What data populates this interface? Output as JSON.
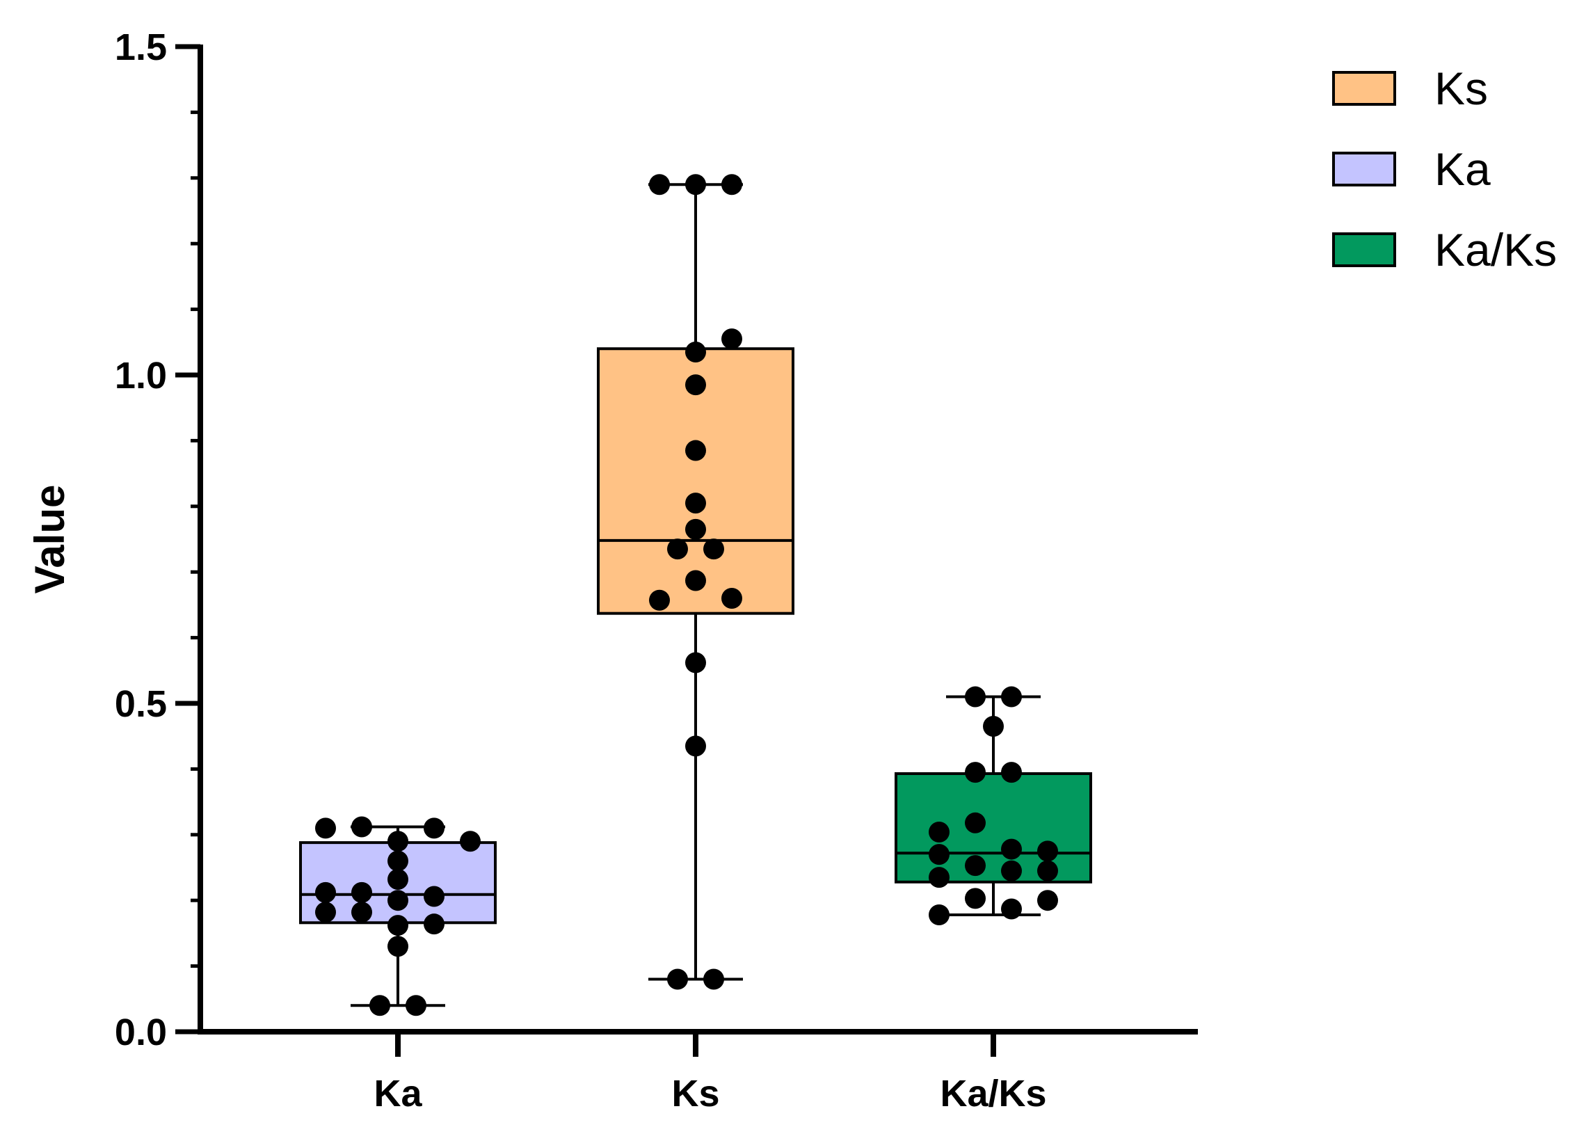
{
  "chart_data": {
    "type": "box",
    "title": "",
    "xlabel": "",
    "ylabel": "Value",
    "ylim": [
      0,
      1.5
    ],
    "yticks": [
      {
        "value": 0.0,
        "label": "0.0"
      },
      {
        "value": 0.5,
        "label": "0.5"
      },
      {
        "value": 1.0,
        "label": "1.0"
      },
      {
        "value": 1.5,
        "label": "1.5"
      }
    ],
    "y_minor_tick_step": 0.1,
    "grid": false,
    "legend_position": "top-right",
    "legend": [
      {
        "label": "Ks",
        "color": "#FFC285"
      },
      {
        "label": "Ka",
        "color": "#C4C4FF"
      },
      {
        "label": "Ka/Ks",
        "color": "#02995E"
      }
    ],
    "categories": [
      "Ka",
      "Ks",
      "Ka/Ks"
    ],
    "boxes": [
      {
        "category": "Ka",
        "color": "#C4C4FF",
        "min": 0.04,
        "q1": 0.166,
        "median": 0.209,
        "q3": 0.288,
        "max": 0.312,
        "points": [
          {
            "offset": -2,
            "y": 0.31
          },
          {
            "offset": -1,
            "y": 0.312
          },
          {
            "offset": 1,
            "y": 0.31
          },
          {
            "offset": 2,
            "y": 0.29
          },
          {
            "offset": 0,
            "y": 0.29
          },
          {
            "offset": 0,
            "y": 0.26
          },
          {
            "offset": 0,
            "y": 0.232
          },
          {
            "offset": -2,
            "y": 0.212
          },
          {
            "offset": -1,
            "y": 0.212
          },
          {
            "offset": 1,
            "y": 0.206
          },
          {
            "offset": 0,
            "y": 0.2
          },
          {
            "offset": -2,
            "y": 0.182
          },
          {
            "offset": -1,
            "y": 0.182
          },
          {
            "offset": 0,
            "y": 0.162
          },
          {
            "offset": 1,
            "y": 0.164
          },
          {
            "offset": 0,
            "y": 0.13
          },
          {
            "offset": -0.5,
            "y": 0.04
          },
          {
            "offset": 0.5,
            "y": 0.04
          }
        ]
      },
      {
        "category": "Ks",
        "color": "#FFC285",
        "min": 0.08,
        "q1": 0.637,
        "median": 0.748,
        "q3": 1.04,
        "max": 1.29,
        "points": [
          {
            "offset": -1,
            "y": 1.29
          },
          {
            "offset": 0,
            "y": 1.29
          },
          {
            "offset": 1,
            "y": 1.29
          },
          {
            "offset": 1,
            "y": 1.055
          },
          {
            "offset": 0,
            "y": 1.035
          },
          {
            "offset": 0,
            "y": 0.985
          },
          {
            "offset": 0,
            "y": 0.885
          },
          {
            "offset": 0,
            "y": 0.805
          },
          {
            "offset": 0,
            "y": 0.765
          },
          {
            "offset": -0.5,
            "y": 0.735
          },
          {
            "offset": 0.5,
            "y": 0.735
          },
          {
            "offset": 0,
            "y": 0.687
          },
          {
            "offset": -1,
            "y": 0.657
          },
          {
            "offset": 1,
            "y": 0.66
          },
          {
            "offset": 0,
            "y": 0.562
          },
          {
            "offset": 0,
            "y": 0.435
          },
          {
            "offset": -0.5,
            "y": 0.08
          },
          {
            "offset": 0.5,
            "y": 0.08
          }
        ]
      },
      {
        "category": "Ka/Ks",
        "color": "#02995E",
        "min": 0.178,
        "q1": 0.228,
        "median": 0.272,
        "q3": 0.393,
        "max": 0.51,
        "points": [
          {
            "offset": -0.5,
            "y": 0.51
          },
          {
            "offset": 0.5,
            "y": 0.51
          },
          {
            "offset": 0,
            "y": 0.465
          },
          {
            "offset": -0.5,
            "y": 0.395
          },
          {
            "offset": 0.5,
            "y": 0.395
          },
          {
            "offset": -0.5,
            "y": 0.318
          },
          {
            "offset": -1.5,
            "y": 0.304
          },
          {
            "offset": 0.5,
            "y": 0.278
          },
          {
            "offset": -1.5,
            "y": 0.27
          },
          {
            "offset": 1.5,
            "y": 0.275
          },
          {
            "offset": -0.5,
            "y": 0.253
          },
          {
            "offset": 0.5,
            "y": 0.245
          },
          {
            "offset": 1.5,
            "y": 0.245
          },
          {
            "offset": -1.5,
            "y": 0.235
          },
          {
            "offset": -0.5,
            "y": 0.203
          },
          {
            "offset": 1.5,
            "y": 0.2
          },
          {
            "offset": -1.5,
            "y": 0.178
          },
          {
            "offset": 0.5,
            "y": 0.187
          }
        ]
      }
    ]
  }
}
